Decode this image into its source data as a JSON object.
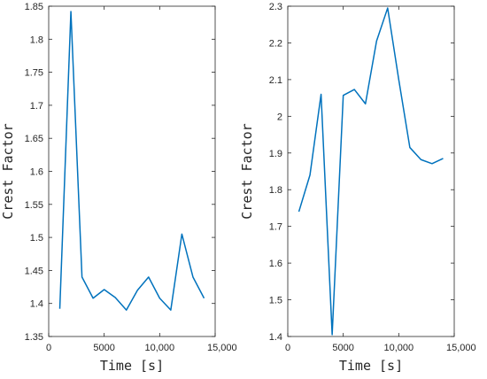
{
  "chart_data": [
    {
      "type": "line",
      "xlabel": "Time [s]",
      "ylabel": "Crest Factor",
      "xlim": [
        0,
        15000
      ],
      "ylim": [
        1.35,
        1.85
      ],
      "xticks": [
        0,
        5000,
        10000,
        15000
      ],
      "xtick_labels": [
        "0",
        "5000",
        "10,000",
        "15,000"
      ],
      "yticks": [
        1.35,
        1.4,
        1.45,
        1.5,
        1.55,
        1.6,
        1.65,
        1.7,
        1.75,
        1.8,
        1.85
      ],
      "ytick_labels": [
        "1.35",
        "1.4",
        "1.45",
        "1.5",
        "1.55",
        "1.6",
        "1.65",
        "1.7",
        "1.75",
        "1.8",
        "1.85"
      ],
      "grid": false,
      "color": "#0072BD",
      "series": [
        {
          "x": [
            1000,
            2000,
            3000,
            4000,
            5000,
            6000,
            7000,
            8000,
            9000,
            10000,
            11000,
            12000,
            13000,
            14000
          ],
          "values": [
            1.392,
            1.842,
            1.44,
            1.408,
            1.421,
            1.409,
            1.39,
            1.42,
            1.44,
            1.408,
            1.39,
            1.505,
            1.44,
            1.408
          ]
        }
      ]
    },
    {
      "type": "line",
      "xlabel": "Time [s]",
      "ylabel": "Crest Factor",
      "xlim": [
        0,
        15000
      ],
      "ylim": [
        1.4,
        2.3
      ],
      "xticks": [
        0,
        5000,
        10000,
        15000
      ],
      "xtick_labels": [
        "0",
        "5000",
        "10,000",
        "15,000"
      ],
      "yticks": [
        1.4,
        1.5,
        1.6,
        1.7,
        1.8,
        1.9,
        2.0,
        2.1,
        2.2,
        2.3
      ],
      "ytick_labels": [
        "1.4",
        "1.5",
        "1.6",
        "1.7",
        "1.8",
        "1.9",
        "2",
        "2.1",
        "2.2",
        "2.3"
      ],
      "grid": false,
      "color": "#0072BD",
      "series": [
        {
          "x": [
            1000,
            2000,
            3000,
            4000,
            5000,
            6000,
            7000,
            8000,
            9000,
            10000,
            11000,
            12000,
            13000,
            14000
          ],
          "values": [
            1.74,
            1.84,
            2.06,
            1.405,
            2.057,
            2.073,
            2.034,
            2.205,
            2.295,
            2.1,
            1.915,
            1.882,
            1.871,
            1.885
          ]
        }
      ]
    }
  ]
}
